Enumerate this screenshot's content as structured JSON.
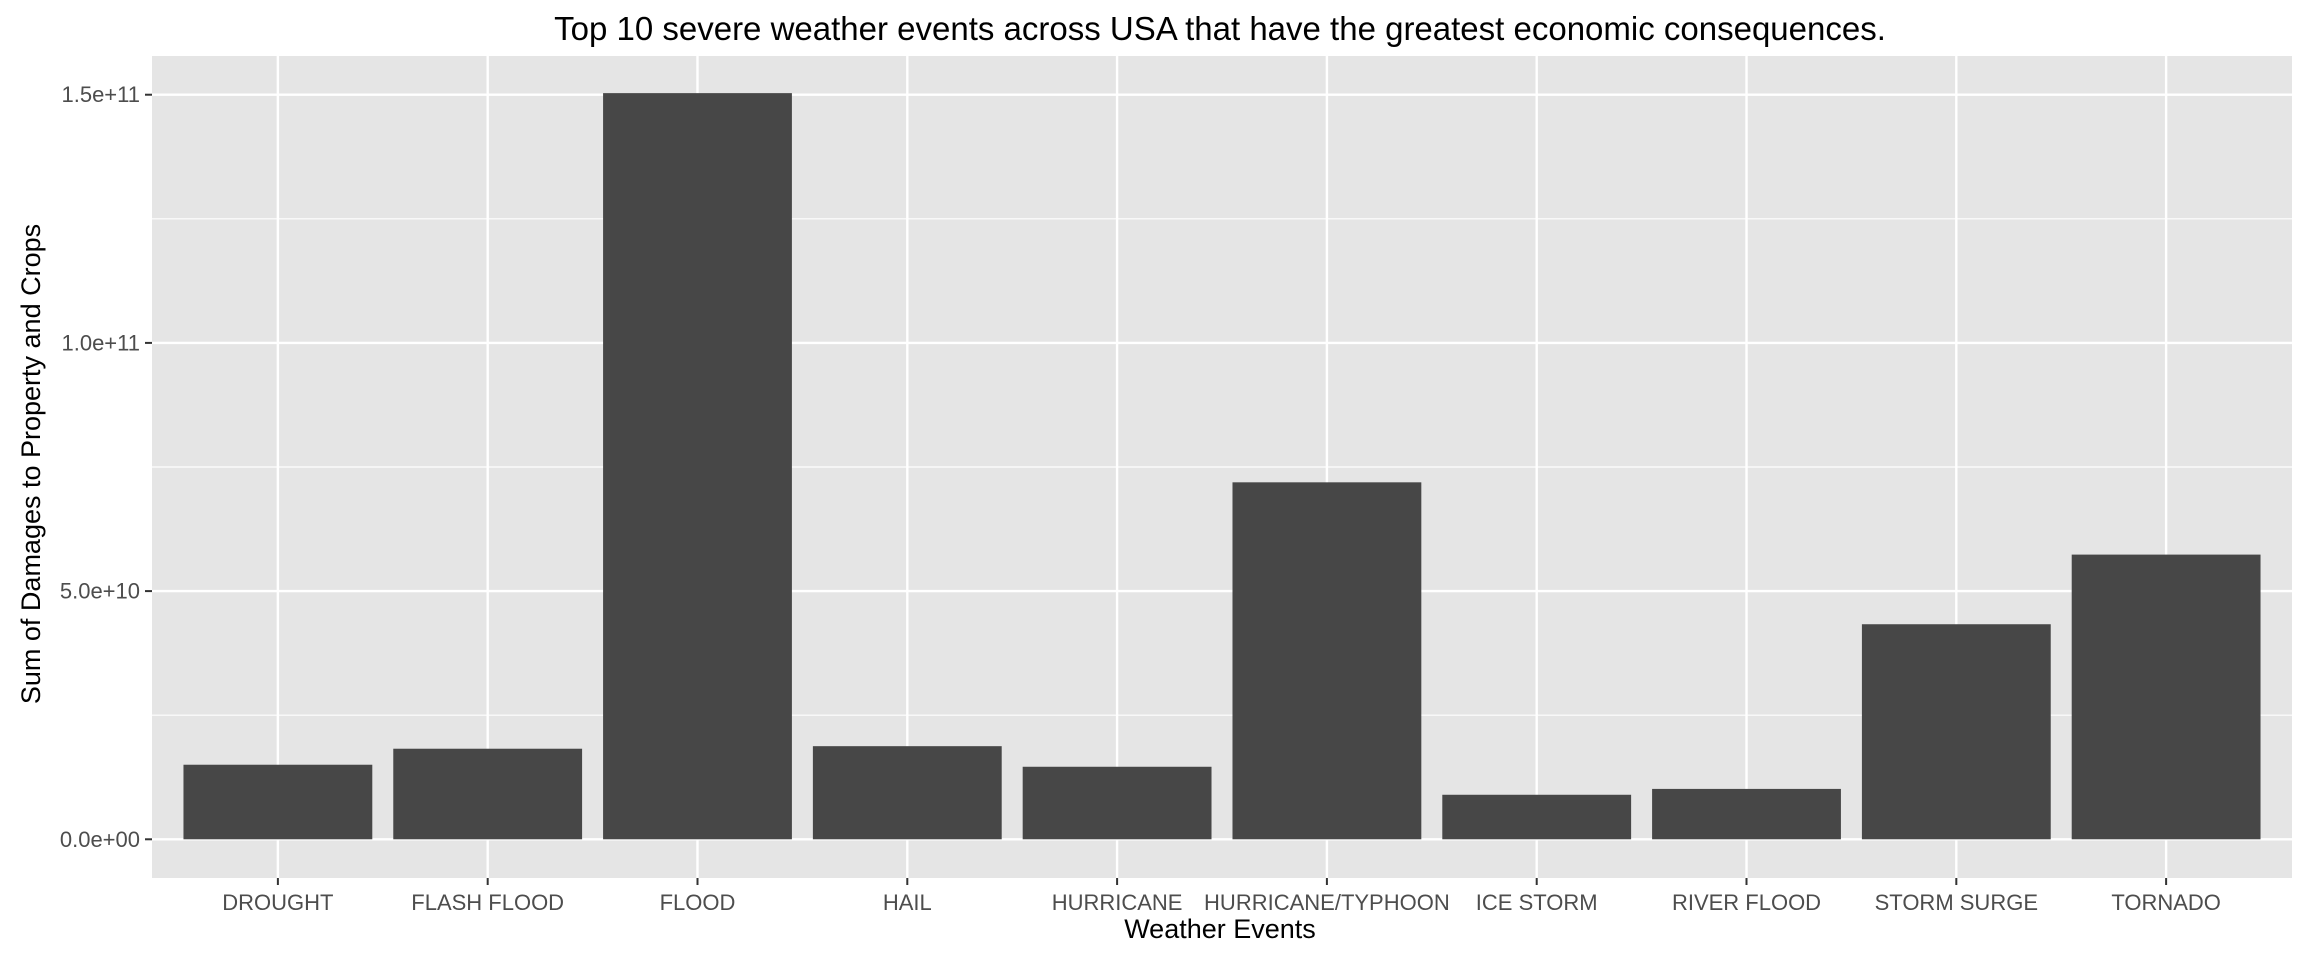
{
  "chart_data": {
    "type": "bar",
    "title": "Top 10 severe weather events across USA that have the greatest economic consequences.",
    "xlabel": "Weather Events",
    "ylabel": "Sum of Damages to Property and Crops",
    "categories": [
      "DROUGHT",
      "FLASH FLOOD",
      "FLOOD",
      "HAIL",
      "HURRICANE",
      "HURRICANE/TYPHOON",
      "ICE STORM",
      "RIVER FLOOD",
      "STORM SURGE",
      "TORNADO"
    ],
    "values": [
      15018672000,
      18243991079,
      150319678257,
      18758221521,
      14610229010,
      71913712800,
      8967041360,
      10148404500,
      43323541000,
      57352114049
    ],
    "ylim": [
      -7800000000,
      157800000000
    ],
    "y_ticks": [
      0,
      50000000000,
      100000000000,
      150000000000
    ],
    "y_tick_labels": [
      "0.0e+00",
      "5.0e+10",
      "1.0e+11",
      "1.5e+11"
    ],
    "grid": true,
    "legend": "none",
    "colors": {
      "panel_background": "#e5e5e5",
      "grid_line": "#ffffff",
      "bar_fill": "#474747",
      "tick_text": "#4d4d4d",
      "axis_tick": "#333333"
    }
  }
}
